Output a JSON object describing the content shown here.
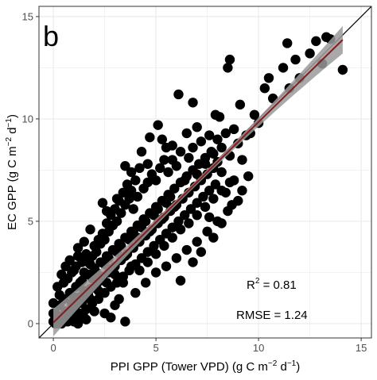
{
  "chart_data": {
    "type": "scatter",
    "panel_label": "b",
    "xlabel": {
      "text": "PPI GPP (Tower VPD)",
      "unit_pre": "(g C m",
      "unit_exp1": "−2",
      "unit_mid": " d",
      "unit_exp2": "−1",
      "unit_post": ")"
    },
    "ylabel": {
      "text": "EC GPP",
      "unit_pre": "(g C m",
      "unit_exp1": "−2",
      "unit_mid": " d",
      "unit_exp2": "−1",
      "unit_post": ")"
    },
    "xlim": [
      -0.7,
      15.5
    ],
    "ylim": [
      -0.7,
      15.5
    ],
    "xticks": [
      0,
      5,
      10,
      15
    ],
    "yticks": [
      0,
      5,
      10,
      15
    ],
    "grid": true,
    "one_to_one_line": true,
    "fit": {
      "intercept": 0.05,
      "slope": 0.98,
      "x_range": [
        0,
        14.1
      ]
    },
    "annotations": {
      "r2_label": "R",
      "r2_sup": "2",
      "r2_value": " = 0.81",
      "rmse": "RMSE = 1.24"
    },
    "colors": {
      "points": "#000000",
      "fit_line": "#8b1a1a",
      "ci_band": "#9a9a9a",
      "grid": "#ebebeb",
      "one_to_one": "#000000"
    },
    "points": [
      [
        0.0,
        0.1
      ],
      [
        0.1,
        0.5
      ],
      [
        0.2,
        0.2
      ],
      [
        0.3,
        0.9
      ],
      [
        0.4,
        0.3
      ],
      [
        0.5,
        1.2
      ],
      [
        0.6,
        0.6
      ],
      [
        0.7,
        0.1
      ],
      [
        0.8,
        1.5
      ],
      [
        0.9,
        0.8
      ],
      [
        1.0,
        0.3
      ],
      [
        1.1,
        1.8
      ],
      [
        1.2,
        1.1
      ],
      [
        1.3,
        0.5
      ],
      [
        1.4,
        2.1
      ],
      [
        1.5,
        1.4
      ],
      [
        1.6,
        0.7
      ],
      [
        1.7,
        2.4
      ],
      [
        1.8,
        1.7
      ],
      [
        1.9,
        1.0
      ],
      [
        2.0,
        2.7
      ],
      [
        2.1,
        1.9
      ],
      [
        2.2,
        1.2
      ],
      [
        2.3,
        3.0
      ],
      [
        2.4,
        2.3
      ],
      [
        2.5,
        1.5
      ],
      [
        2.6,
        3.3
      ],
      [
        2.7,
        2.5
      ],
      [
        2.8,
        1.8
      ],
      [
        2.9,
        3.6
      ],
      [
        3.0,
        2.8
      ],
      [
        3.1,
        2.0
      ],
      [
        3.2,
        3.9
      ],
      [
        3.3,
        3.1
      ],
      [
        3.4,
        2.3
      ],
      [
        3.5,
        4.2
      ],
      [
        3.6,
        3.4
      ],
      [
        3.7,
        2.6
      ],
      [
        3.8,
        4.5
      ],
      [
        3.9,
        3.7
      ],
      [
        4.0,
        2.9
      ],
      [
        4.1,
        4.8
      ],
      [
        4.2,
        4.0
      ],
      [
        4.3,
        3.2
      ],
      [
        4.4,
        5.1
      ],
      [
        4.5,
        4.3
      ],
      [
        4.6,
        3.5
      ],
      [
        4.7,
        5.4
      ],
      [
        4.8,
        4.6
      ],
      [
        4.9,
        3.8
      ],
      [
        5.0,
        5.7
      ],
      [
        5.1,
        4.9
      ],
      [
        5.2,
        4.1
      ],
      [
        5.3,
        6.0
      ],
      [
        5.4,
        5.2
      ],
      [
        5.5,
        4.4
      ],
      [
        5.6,
        6.3
      ],
      [
        5.7,
        5.5
      ],
      [
        5.8,
        4.7
      ],
      [
        5.9,
        6.6
      ],
      [
        6.0,
        5.8
      ],
      [
        6.1,
        5.0
      ],
      [
        6.2,
        6.9
      ],
      [
        6.3,
        6.1
      ],
      [
        6.4,
        5.3
      ],
      [
        6.5,
        7.2
      ],
      [
        6.6,
        6.4
      ],
      [
        6.7,
        5.6
      ],
      [
        6.8,
        7.5
      ],
      [
        6.9,
        6.7
      ],
      [
        7.0,
        5.9
      ],
      [
        7.1,
        7.8
      ],
      [
        7.2,
        7.0
      ],
      [
        7.3,
        6.2
      ],
      [
        7.4,
        8.1
      ],
      [
        7.5,
        7.3
      ],
      [
        7.6,
        6.5
      ],
      [
        7.7,
        8.4
      ],
      [
        7.8,
        7.6
      ],
      [
        7.9,
        6.8
      ],
      [
        0.2,
        1.8
      ],
      [
        0.4,
        2.4
      ],
      [
        0.6,
        2.8
      ],
      [
        0.8,
        3.1
      ],
      [
        1.0,
        2.6
      ],
      [
        1.2,
        3.3
      ],
      [
        1.4,
        3.0
      ],
      [
        1.6,
        3.4
      ],
      [
        1.8,
        2.9
      ],
      [
        2.0,
        3.8
      ],
      [
        2.2,
        4.1
      ],
      [
        2.4,
        4.4
      ],
      [
        2.6,
        4.9
      ],
      [
        2.8,
        5.3
      ],
      [
        3.0,
        5.6
      ],
      [
        3.2,
        6.0
      ],
      [
        3.4,
        6.4
      ],
      [
        3.6,
        6.8
      ],
      [
        3.8,
        6.5
      ],
      [
        4.0,
        7.0
      ],
      [
        1.0,
        0.1
      ],
      [
        1.5,
        0.3
      ],
      [
        2.0,
        0.6
      ],
      [
        2.5,
        0.5
      ],
      [
        3.0,
        0.9
      ],
      [
        3.5,
        0.1
      ],
      [
        3.2,
        1.2
      ],
      [
        2.8,
        0.3
      ],
      [
        4.0,
        1.5
      ],
      [
        4.5,
        2.0
      ],
      [
        5.0,
        2.5
      ],
      [
        5.5,
        2.8
      ],
      [
        6.0,
        3.2
      ],
      [
        6.5,
        3.6
      ],
      [
        7.0,
        4.0
      ],
      [
        7.5,
        4.5
      ],
      [
        8.0,
        5.0
      ],
      [
        8.5,
        5.5
      ],
      [
        9.0,
        6.0
      ],
      [
        6.2,
        2.1
      ],
      [
        6.8,
        3.0
      ],
      [
        7.2,
        3.5
      ],
      [
        7.8,
        4.2
      ],
      [
        8.2,
        4.9
      ],
      [
        8.7,
        5.8
      ],
      [
        9.2,
        6.5
      ],
      [
        9.5,
        7.2
      ],
      [
        8.8,
        7.0
      ],
      [
        8.4,
        6.4
      ],
      [
        7.6,
        5.2
      ],
      [
        8.0,
        9.0
      ],
      [
        8.2,
        8.6
      ],
      [
        8.4,
        9.3
      ],
      [
        8.6,
        8.2
      ],
      [
        8.8,
        9.5
      ],
      [
        9.0,
        8.8
      ],
      [
        9.2,
        8.0
      ],
      [
        9.4,
        9.2
      ],
      [
        8.1,
        10.1
      ],
      [
        7.9,
        10.2
      ],
      [
        5.3,
        9.0
      ],
      [
        5.5,
        8.6
      ],
      [
        5.8,
        8.7
      ],
      [
        5.1,
        9.7
      ],
      [
        6.1,
        11.2
      ],
      [
        6.8,
        10.8
      ],
      [
        7.0,
        9.6
      ],
      [
        6.5,
        9.3
      ],
      [
        4.7,
        9.1
      ],
      [
        4.3,
        8.4
      ],
      [
        3.5,
        7.7
      ],
      [
        3.8,
        7.4
      ],
      [
        4.2,
        7.6
      ],
      [
        4.6,
        7.8
      ],
      [
        3.1,
        6.1
      ],
      [
        2.6,
        5.5
      ],
      [
        2.4,
        5.9
      ],
      [
        1.8,
        4.6
      ],
      [
        1.5,
        4.0
      ],
      [
        1.2,
        3.7
      ],
      [
        8.5,
        12.5
      ],
      [
        8.6,
        12.9
      ],
      [
        11.4,
        13.7
      ],
      [
        11.2,
        12.5
      ],
      [
        13.3,
        14.0
      ],
      [
        13.1,
        12.7
      ],
      [
        14.1,
        12.4
      ],
      [
        12.5,
        13.2
      ],
      [
        10.3,
        11.5
      ],
      [
        9.8,
        10.2
      ],
      [
        10.5,
        12.0
      ],
      [
        11.8,
        12.9
      ],
      [
        12.8,
        13.8
      ],
      [
        13.5,
        13.9
      ],
      [
        9.1,
        10.7
      ],
      [
        10.0,
        9.8
      ],
      [
        10.7,
        11.0
      ],
      [
        11.5,
        11.5
      ],
      [
        12.0,
        12.0
      ],
      [
        9.6,
        9.3
      ],
      [
        0.1,
        0.0
      ],
      [
        0.3,
        0.2
      ],
      [
        0.5,
        0.4
      ],
      [
        0.7,
        0.6
      ],
      [
        0.9,
        1.0
      ],
      [
        1.1,
        0.9
      ],
      [
        1.3,
        1.3
      ],
      [
        1.5,
        1.6
      ],
      [
        1.7,
        1.4
      ],
      [
        1.9,
        2.2
      ],
      [
        2.1,
        2.5
      ],
      [
        2.3,
        2.1
      ],
      [
        2.5,
        2.9
      ],
      [
        2.7,
        3.2
      ],
      [
        2.9,
        2.7
      ],
      [
        3.1,
        3.5
      ],
      [
        3.3,
        3.8
      ],
      [
        3.5,
        3.3
      ],
      [
        3.7,
        4.1
      ],
      [
        3.9,
        4.5
      ],
      [
        4.1,
        4.2
      ],
      [
        4.3,
        4.7
      ],
      [
        4.5,
        5.0
      ],
      [
        4.7,
        4.5
      ],
      [
        4.9,
        5.3
      ],
      [
        5.1,
        5.6
      ],
      [
        5.3,
        5.1
      ],
      [
        5.5,
        5.9
      ],
      [
        5.7,
        6.2
      ],
      [
        5.9,
        5.7
      ],
      [
        0.0,
        0.5
      ],
      [
        0.0,
        1.0
      ],
      [
        0.2,
        0.0
      ],
      [
        0.4,
        0.0
      ],
      [
        0.6,
        0.2
      ],
      [
        0.8,
        0.4
      ],
      [
        1.0,
        0.6
      ],
      [
        1.2,
        0.0
      ],
      [
        1.4,
        0.4
      ],
      [
        1.6,
        0.2
      ],
      [
        0.3,
        1.4
      ],
      [
        0.5,
        2.0
      ],
      [
        0.7,
        2.2
      ],
      [
        0.9,
        2.5
      ],
      [
        1.1,
        2.8
      ],
      [
        1.3,
        2.0
      ],
      [
        1.5,
        2.5
      ],
      [
        1.7,
        3.0
      ],
      [
        1.9,
        3.3
      ],
      [
        2.1,
        3.5
      ],
      [
        2.3,
        3.9
      ],
      [
        2.5,
        4.1
      ],
      [
        2.7,
        4.5
      ],
      [
        2.9,
        4.8
      ],
      [
        3.1,
        5.0
      ],
      [
        3.3,
        5.4
      ],
      [
        3.5,
        5.8
      ],
      [
        3.7,
        6.1
      ],
      [
        3.9,
        5.6
      ],
      [
        4.1,
        6.2
      ],
      [
        4.4,
        6.6
      ],
      [
        4.6,
        6.9
      ],
      [
        4.8,
        7.3
      ],
      [
        5.0,
        7.0
      ],
      [
        5.2,
        7.6
      ],
      [
        5.4,
        8.0
      ],
      [
        5.6,
        7.4
      ],
      [
        5.8,
        8.0
      ],
      [
        6.0,
        7.7
      ],
      [
        6.2,
        8.4
      ],
      [
        6.4,
        7.0
      ],
      [
        6.6,
        8.1
      ],
      [
        6.8,
        8.6
      ],
      [
        7.0,
        7.3
      ],
      [
        7.2,
        8.9
      ],
      [
        7.4,
        7.8
      ],
      [
        7.6,
        9.2
      ],
      [
        7.8,
        8.3
      ],
      [
        8.0,
        7.9
      ],
      [
        8.2,
        7.4
      ],
      [
        1.0,
        1.3
      ],
      [
        1.4,
        1.0
      ],
      [
        1.8,
        1.2
      ],
      [
        2.2,
        1.6
      ],
      [
        2.6,
        2.0
      ],
      [
        3.0,
        2.4
      ],
      [
        3.4,
        2.0
      ],
      [
        3.8,
        2.8
      ],
      [
        4.2,
        2.6
      ],
      [
        4.6,
        3.0
      ],
      [
        5.0,
        3.4
      ],
      [
        5.4,
        3.8
      ],
      [
        5.8,
        4.2
      ],
      [
        6.2,
        4.6
      ],
      [
        6.6,
        4.9
      ],
      [
        7.0,
        5.3
      ],
      [
        7.4,
        5.7
      ],
      [
        7.8,
        6.1
      ],
      [
        8.2,
        6.5
      ],
      [
        8.6,
        6.9
      ]
    ]
  }
}
